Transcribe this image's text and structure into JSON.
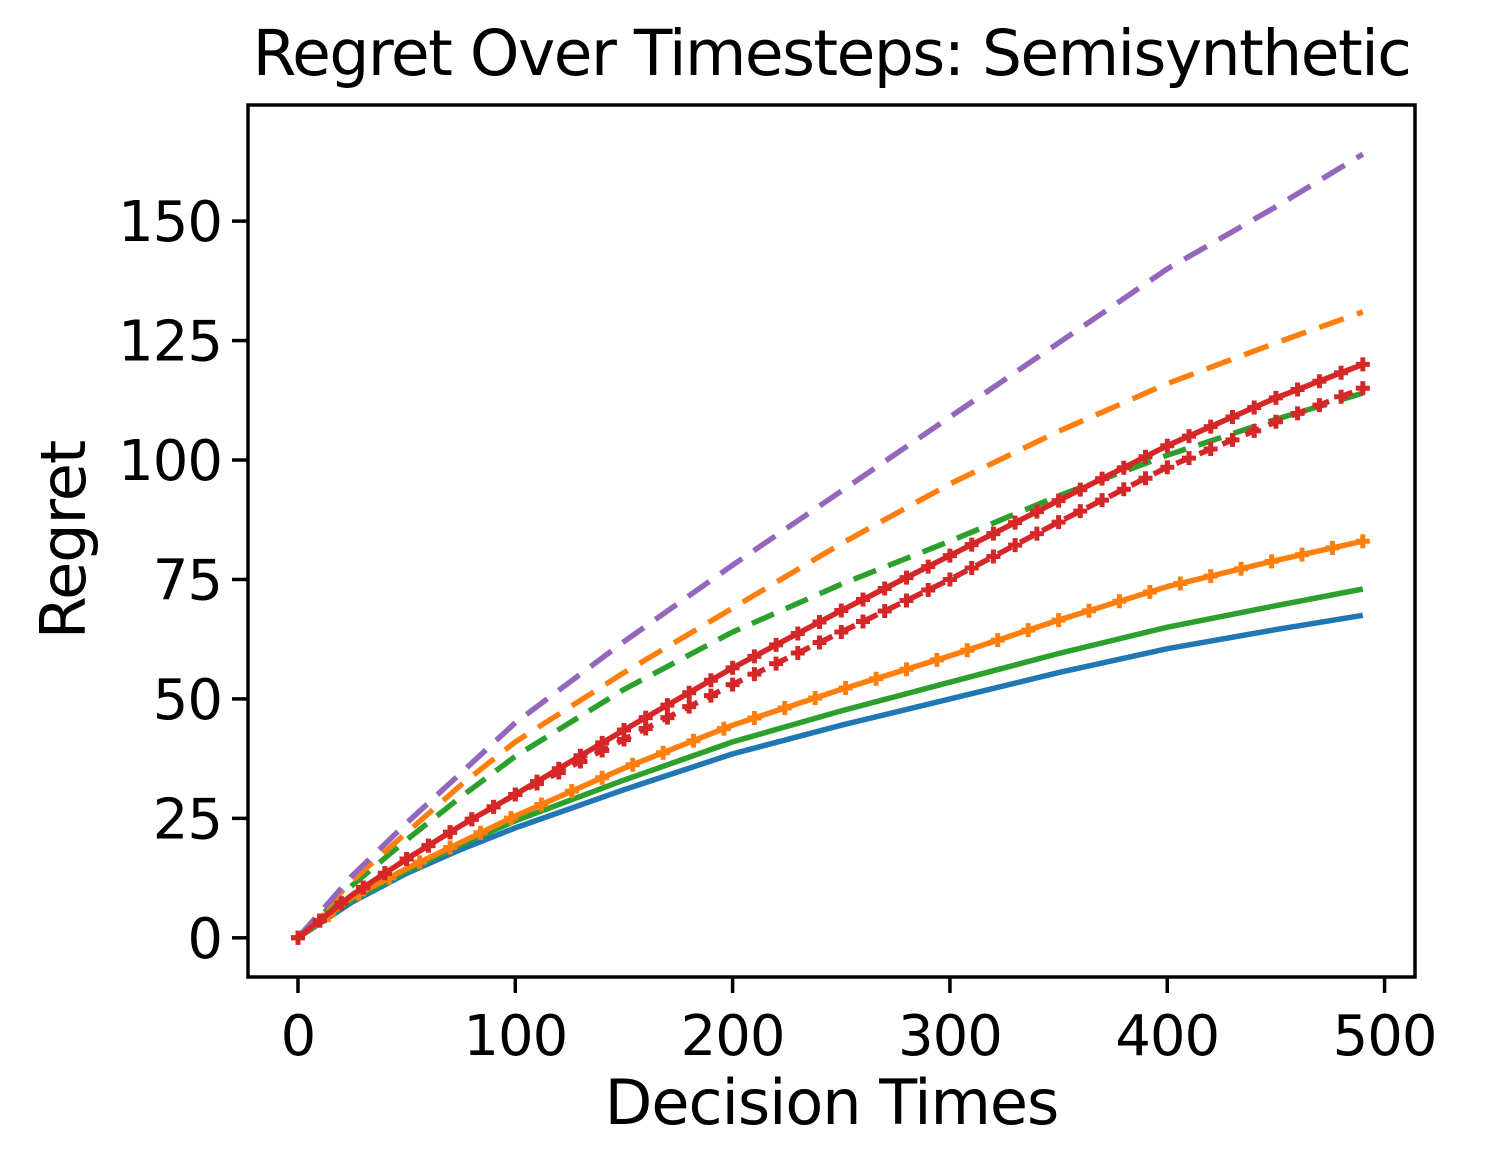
{
  "chart_data": {
    "type": "line",
    "title": "Regret Over Timesteps: Semisynthetic",
    "xlabel": "Decision Times",
    "ylabel": "Regret",
    "x_ticks": [
      0,
      100,
      200,
      300,
      400,
      500
    ],
    "y_ticks": [
      0,
      25,
      50,
      75,
      100,
      125,
      150
    ],
    "xlim": [
      -23,
      514
    ],
    "ylim": [
      -8.2,
      174.3
    ],
    "grid": false,
    "legend_position": "none",
    "x": [
      0,
      25,
      50,
      75,
      100,
      150,
      200,
      250,
      300,
      350,
      400,
      450,
      490
    ],
    "series": [
      {
        "name": "blue-solid",
        "color": "#1f77b4",
        "style": "solid",
        "dash": null,
        "marker": "none",
        "marker_every": 0,
        "values": [
          0,
          7.5,
          13.5,
          18.5,
          23,
          31,
          38.5,
          44.5,
          50,
          55.5,
          60.5,
          64.5,
          67.5
        ]
      },
      {
        "name": "green-solid",
        "color": "#2ca02c",
        "style": "solid",
        "dash": null,
        "marker": "none",
        "marker_every": 0,
        "values": [
          0,
          8,
          14,
          19.5,
          24.5,
          33,
          41,
          47.5,
          53.5,
          59.5,
          65,
          69.5,
          73
        ]
      },
      {
        "name": "orange-solid",
        "color": "#ff7f0e",
        "style": "solid",
        "dash": null,
        "marker": "plus",
        "marker_every": 14,
        "values": [
          0,
          8.5,
          14.5,
          20,
          25.5,
          35.5,
          44.5,
          52,
          59,
          66.5,
          73.5,
          79,
          83
        ]
      },
      {
        "name": "green-dashed",
        "color": "#2ca02c",
        "style": "dashed",
        "dash": [
          24,
          13
        ],
        "marker": "none",
        "marker_every": 0,
        "values": [
          0,
          11,
          20.5,
          29.5,
          38,
          52,
          64,
          74,
          83,
          92.5,
          101,
          108.5,
          114
        ]
      },
      {
        "name": "orange-dashed",
        "color": "#ff7f0e",
        "style": "dashed",
        "dash": [
          26,
          14
        ],
        "marker": "none",
        "marker_every": 0,
        "values": [
          0,
          12,
          22,
          32,
          41,
          55.5,
          69,
          82.5,
          95,
          106,
          116,
          124.5,
          131
        ]
      },
      {
        "name": "purple-dashed",
        "color": "#9467bd",
        "style": "dashed",
        "dash": [
          26,
          14
        ],
        "marker": "none",
        "marker_every": 0,
        "values": [
          0,
          13,
          24,
          34.5,
          45,
          62,
          78,
          93.5,
          109,
          124.5,
          140,
          153,
          164
        ]
      },
      {
        "name": "red-dashed",
        "color": "#d62728",
        "style": "dashed",
        "dash": [
          15,
          10
        ],
        "marker": "plus",
        "marker_every": 10,
        "values": [
          0,
          9,
          16.5,
          23.5,
          30,
          41.5,
          53,
          64,
          75,
          87,
          98.5,
          108,
          115
        ]
      },
      {
        "name": "red-solid",
        "color": "#d62728",
        "style": "solid",
        "dash": null,
        "marker": "plus",
        "marker_every": 10,
        "values": [
          0,
          9,
          16.5,
          23.5,
          30,
          43.5,
          56.5,
          68.5,
          80,
          91.5,
          103,
          113,
          120
        ]
      }
    ]
  },
  "colors": {
    "background": "#ffffff",
    "text": "#000000",
    "spine": "#000000"
  }
}
